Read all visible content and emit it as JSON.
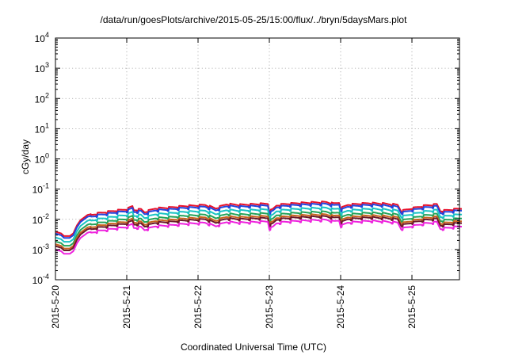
{
  "chart_data": {
    "type": "line",
    "title": "/data/run/goesPlots/archive/2015-05-25/15:00/flux/../bryn/5daysMars.plot",
    "xlabel": "Coordinated Universal Time (UTC)",
    "ylabel": "cGy/day",
    "x_ticks": [
      "2015-5-20",
      "2015-5-21",
      "2015-5-22",
      "2015-5-23",
      "2015-5-24",
      "2015-5-25"
    ],
    "x_range_days": [
      0,
      5.7
    ],
    "y_scale": "log",
    "y_ticks": [
      {
        "base": "10",
        "exp": "-4"
      },
      {
        "base": "10",
        "exp": "-3"
      },
      {
        "base": "10",
        "exp": "-2"
      },
      {
        "base": "10",
        "exp": "-1"
      },
      {
        "base": "10",
        "exp": "0"
      },
      {
        "base": "10",
        "exp": "1"
      },
      {
        "base": "10",
        "exp": "2"
      },
      {
        "base": "10",
        "exp": "3"
      },
      {
        "base": "10",
        "exp": "4"
      }
    ],
    "ylim": [
      0.0001,
      10000
    ],
    "grid": true,
    "legend": "none",
    "series": [
      {
        "color": "#e8102a",
        "factor": 1.55
      },
      {
        "color": "#2244dd",
        "factor": 1.35
      },
      {
        "color": "#19c3c3",
        "factor": 1.0
      },
      {
        "color": "#23a35a",
        "factor": 0.74
      },
      {
        "color": "#c8641e",
        "factor": 0.6
      },
      {
        "color": "#6b1a2a",
        "factor": 0.52
      },
      {
        "color": "#ee22dd",
        "factor": 0.4
      }
    ],
    "base_series": {
      "x": [
        0,
        0.08,
        0.12,
        0.2,
        0.25,
        0.3,
        0.35,
        0.45,
        0.6,
        0.8,
        1.0,
        1.08,
        1.1,
        1.2,
        1.25,
        1.4,
        1.6,
        1.8,
        2.0,
        2.1,
        2.25,
        2.3,
        2.4,
        2.6,
        2.8,
        2.98,
        3.0,
        3.05,
        3.1,
        3.2,
        3.4,
        3.6,
        3.8,
        3.9,
        3.98,
        4.0,
        4.1,
        4.2,
        4.4,
        4.6,
        4.8,
        4.85,
        4.9,
        5.0,
        5.1,
        5.2,
        5.3,
        5.35,
        5.4,
        5.5,
        5.6,
        5.7
      ],
      "y": [
        0.0025,
        0.0022,
        0.0018,
        0.0018,
        0.0022,
        0.004,
        0.006,
        0.009,
        0.011,
        0.013,
        0.015,
        0.019,
        0.014,
        0.015,
        0.012,
        0.016,
        0.017,
        0.019,
        0.02,
        0.021,
        0.016,
        0.018,
        0.022,
        0.021,
        0.022,
        0.023,
        0.013,
        0.015,
        0.02,
        0.022,
        0.024,
        0.025,
        0.026,
        0.023,
        0.025,
        0.016,
        0.021,
        0.022,
        0.024,
        0.023,
        0.021,
        0.013,
        0.014,
        0.016,
        0.018,
        0.02,
        0.021,
        0.022,
        0.013,
        0.014,
        0.015,
        0.016
      ]
    }
  }
}
